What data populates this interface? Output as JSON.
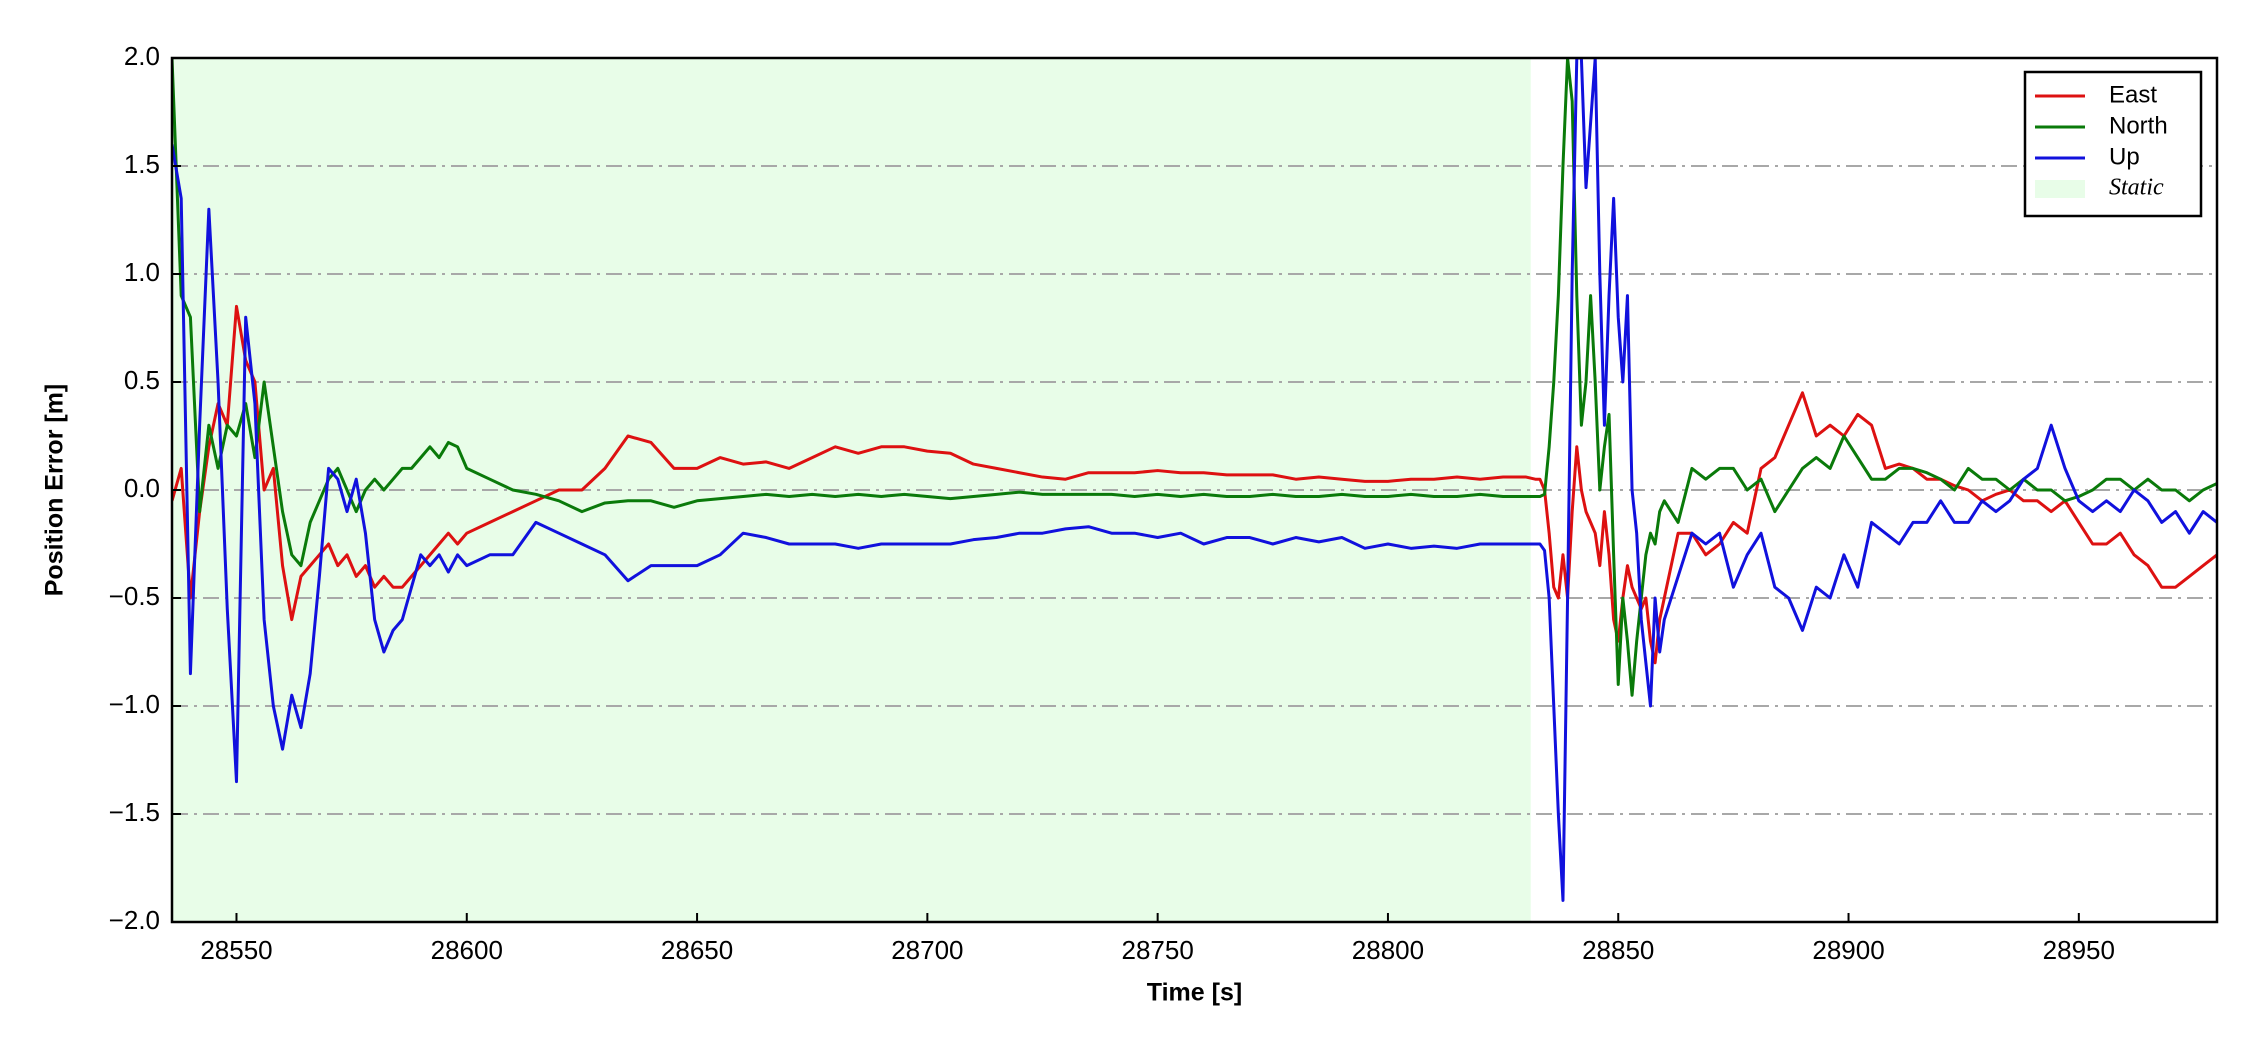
{
  "chart_data": {
    "type": "line",
    "xlabel": "Time [s]",
    "ylabel": "Position Error [m]",
    "xlim": [
      28536,
      28980
    ],
    "ylim": [
      -2,
      2
    ],
    "xticks": [
      28550,
      28600,
      28650,
      28700,
      28750,
      28800,
      28850,
      28900,
      28950
    ],
    "yticks": [
      {
        "value": -2,
        "label": "−2.0"
      },
      {
        "value": -1.5,
        "label": "−1.5"
      },
      {
        "value": -1,
        "label": "−1.0"
      },
      {
        "value": -0.5,
        "label": "−0.5"
      },
      {
        "value": 0,
        "label": "0.0"
      },
      0.5,
      {
        "value": 1,
        "label": "1.0"
      },
      1.5,
      {
        "value": 2,
        "label": "2.0"
      }
    ],
    "grid": true,
    "legend": "upper right",
    "shaded_regions": [
      {
        "name": "Static",
        "x": [
          28536,
          28831
        ],
        "color": "#e8fde8"
      }
    ],
    "x": [
      28536,
      28538,
      28540,
      28542,
      28544,
      28546,
      28548,
      28550,
      28552,
      28554,
      28556,
      28558,
      28560,
      28562,
      28564,
      28566,
      28568,
      28570,
      28572,
      28574,
      28576,
      28578,
      28580,
      28582,
      28584,
      28586,
      28588,
      28590,
      28592,
      28594,
      28596,
      28598,
      28600,
      28605,
      28610,
      28615,
      28620,
      28625,
      28630,
      28635,
      28640,
      28645,
      28650,
      28655,
      28660,
      28665,
      28670,
      28675,
      28680,
      28685,
      28690,
      28695,
      28700,
      28705,
      28710,
      28715,
      28720,
      28725,
      28730,
      28735,
      28740,
      28745,
      28750,
      28755,
      28760,
      28765,
      28770,
      28775,
      28780,
      28785,
      28790,
      28795,
      28800,
      28805,
      28810,
      28815,
      28820,
      28825,
      28830,
      28832,
      28833,
      28834,
      28835,
      28836,
      28837,
      28838,
      28839,
      28840,
      28841,
      28842,
      28843,
      28844,
      28845,
      28846,
      28847,
      28848,
      28849,
      28850,
      28851,
      28852,
      28853,
      28854,
      28855,
      28856,
      28857,
      28858,
      28859,
      28860,
      28863,
      28866,
      28869,
      28872,
      28875,
      28878,
      28881,
      28884,
      28887,
      28890,
      28893,
      28896,
      28899,
      28902,
      28905,
      28908,
      28911,
      28914,
      28917,
      28920,
      28923,
      28926,
      28929,
      28932,
      28935,
      28938,
      28941,
      28944,
      28947,
      28950,
      28953,
      28956,
      28959,
      28962,
      28965,
      28968,
      28971,
      28974,
      28977,
      28980
    ],
    "series": [
      {
        "name": "East",
        "color": "#dd1111",
        "values": [
          -0.05,
          0.1,
          -0.5,
          -0.1,
          0.2,
          0.4,
          0.3,
          0.85,
          0.6,
          0.5,
          0.0,
          0.1,
          -0.35,
          -0.6,
          -0.4,
          -0.35,
          -0.3,
          -0.25,
          -0.35,
          -0.3,
          -0.4,
          -0.35,
          -0.45,
          -0.4,
          -0.45,
          -0.45,
          -0.4,
          -0.35,
          -0.3,
          -0.25,
          -0.2,
          -0.25,
          -0.2,
          -0.15,
          -0.1,
          -0.05,
          0.0,
          0.0,
          0.1,
          0.25,
          0.22,
          0.1,
          0.1,
          0.15,
          0.12,
          0.13,
          0.1,
          0.15,
          0.2,
          0.17,
          0.2,
          0.2,
          0.18,
          0.17,
          0.12,
          0.1,
          0.08,
          0.06,
          0.05,
          0.08,
          0.08,
          0.08,
          0.09,
          0.08,
          0.08,
          0.07,
          0.07,
          0.07,
          0.05,
          0.06,
          0.05,
          0.04,
          0.04,
          0.05,
          0.05,
          0.06,
          0.05,
          0.06,
          0.06,
          0.05,
          0.05,
          0.0,
          -0.2,
          -0.45,
          -0.5,
          -0.3,
          -0.5,
          -0.1,
          0.2,
          0.0,
          -0.1,
          -0.15,
          -0.2,
          -0.35,
          -0.1,
          -0.3,
          -0.6,
          -0.7,
          -0.5,
          -0.35,
          -0.45,
          -0.5,
          -0.55,
          -0.5,
          -0.7,
          -0.8,
          -0.6,
          -0.5,
          -0.2,
          -0.2,
          -0.3,
          -0.25,
          -0.15,
          -0.2,
          0.1,
          0.15,
          0.3,
          0.45,
          0.25,
          0.3,
          0.25,
          0.35,
          0.3,
          0.1,
          0.12,
          0.1,
          0.05,
          0.05,
          0.02,
          0.0,
          -0.05,
          -0.02,
          0.0,
          -0.05,
          -0.05,
          -0.1,
          -0.05,
          -0.15,
          -0.25,
          -0.25,
          -0.2,
          -0.3,
          -0.35,
          -0.45,
          -0.45,
          -0.4,
          -0.35,
          -0.3
        ]
      },
      {
        "name": "North",
        "color": "#0a7a0a",
        "values": [
          2.0,
          0.9,
          0.8,
          -0.1,
          0.3,
          0.1,
          0.3,
          0.25,
          0.4,
          0.15,
          0.5,
          0.2,
          -0.1,
          -0.3,
          -0.35,
          -0.15,
          -0.05,
          0.05,
          0.1,
          0.0,
          -0.1,
          0.0,
          0.05,
          0.0,
          0.05,
          0.1,
          0.1,
          0.15,
          0.2,
          0.15,
          0.22,
          0.2,
          0.1,
          0.05,
          0.0,
          -0.02,
          -0.05,
          -0.1,
          -0.06,
          -0.05,
          -0.05,
          -0.08,
          -0.05,
          -0.04,
          -0.03,
          -0.02,
          -0.03,
          -0.02,
          -0.03,
          -0.02,
          -0.03,
          -0.02,
          -0.03,
          -0.04,
          -0.03,
          -0.02,
          -0.01,
          -0.02,
          -0.02,
          -0.02,
          -0.02,
          -0.03,
          -0.02,
          -0.03,
          -0.02,
          -0.03,
          -0.03,
          -0.02,
          -0.03,
          -0.03,
          -0.02,
          -0.03,
          -0.03,
          -0.02,
          -0.03,
          -0.03,
          -0.02,
          -0.03,
          -0.03,
          -0.03,
          -0.03,
          -0.02,
          0.2,
          0.5,
          0.9,
          1.5,
          2.0,
          1.8,
          0.9,
          0.3,
          0.5,
          0.9,
          0.5,
          0.0,
          0.2,
          0.35,
          -0.3,
          -0.9,
          -0.5,
          -0.7,
          -0.95,
          -0.7,
          -0.5,
          -0.3,
          -0.2,
          -0.25,
          -0.1,
          -0.05,
          -0.15,
          0.1,
          0.05,
          0.1,
          0.1,
          0.0,
          0.05,
          -0.1,
          0.0,
          0.1,
          0.15,
          0.1,
          0.25,
          0.15,
          0.05,
          0.05,
          0.1,
          0.1,
          0.08,
          0.05,
          0.0,
          0.1,
          0.05,
          0.05,
          0.0,
          0.05,
          0.0,
          0.0,
          -0.05,
          -0.03,
          0.0,
          0.05,
          0.05,
          0.0,
          0.05,
          0.0,
          0.0,
          -0.05,
          0.0,
          0.03
        ]
      },
      {
        "name": "Up",
        "color": "#1111dd",
        "values": [
          1.6,
          1.35,
          -0.85,
          0.3,
          1.3,
          0.5,
          -0.55,
          -1.35,
          0.8,
          0.4,
          -0.6,
          -1.0,
          -1.2,
          -0.95,
          -1.1,
          -0.85,
          -0.4,
          0.1,
          0.05,
          -0.1,
          0.05,
          -0.2,
          -0.6,
          -0.75,
          -0.65,
          -0.6,
          -0.45,
          -0.3,
          -0.35,
          -0.3,
          -0.38,
          -0.3,
          -0.35,
          -0.3,
          -0.3,
          -0.15,
          -0.2,
          -0.25,
          -0.3,
          -0.42,
          -0.35,
          -0.35,
          -0.35,
          -0.3,
          -0.2,
          -0.22,
          -0.25,
          -0.25,
          -0.25,
          -0.27,
          -0.25,
          -0.25,
          -0.25,
          -0.25,
          -0.23,
          -0.22,
          -0.2,
          -0.2,
          -0.18,
          -0.17,
          -0.2,
          -0.2,
          -0.22,
          -0.2,
          -0.25,
          -0.22,
          -0.22,
          -0.25,
          -0.22,
          -0.24,
          -0.22,
          -0.27,
          -0.25,
          -0.27,
          -0.26,
          -0.27,
          -0.25,
          -0.25,
          -0.25,
          -0.25,
          -0.25,
          -0.28,
          -0.5,
          -1.0,
          -1.5,
          -1.9,
          -0.5,
          1.0,
          2.0,
          2.0,
          1.4,
          1.7,
          2.0,
          1.0,
          0.3,
          0.9,
          1.35,
          0.8,
          0.5,
          0.9,
          0.0,
          -0.2,
          -0.6,
          -0.8,
          -1.0,
          -0.5,
          -0.75,
          -0.6,
          -0.4,
          -0.2,
          -0.25,
          -0.2,
          -0.45,
          -0.3,
          -0.2,
          -0.45,
          -0.5,
          -0.65,
          -0.45,
          -0.5,
          -0.3,
          -0.45,
          -0.15,
          -0.2,
          -0.25,
          -0.15,
          -0.15,
          -0.05,
          -0.15,
          -0.15,
          -0.05,
          -0.1,
          -0.05,
          0.05,
          0.1,
          0.3,
          0.1,
          -0.05,
          -0.1,
          -0.05,
          -0.1,
          0.0,
          -0.05,
          -0.15,
          -0.1,
          -0.2,
          -0.1,
          -0.15
        ]
      }
    ]
  }
}
